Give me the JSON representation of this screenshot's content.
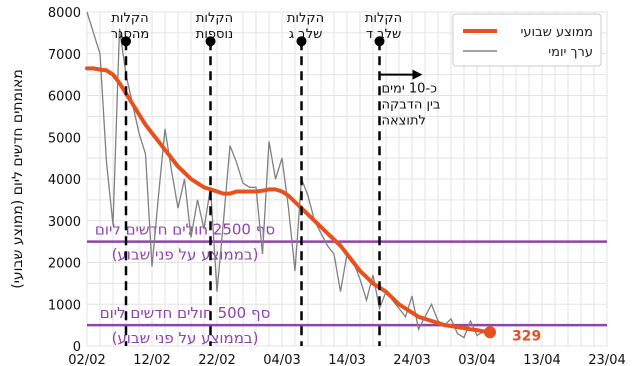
{
  "chart_data": {
    "type": "line",
    "ylabel": "מאומתים חדשים ליום (ממוצע שבועי)",
    "ylim": [
      0,
      8000
    ],
    "yticks": [
      "0",
      "1000",
      "2000",
      "3000",
      "4000",
      "5000",
      "6000",
      "7000",
      "8000"
    ],
    "xlim": [
      0,
      70
    ],
    "xticks": [
      {
        "day": 0,
        "label": "02/02"
      },
      {
        "day": 10,
        "label": "12/02"
      },
      {
        "day": 20,
        "label": "22/02"
      },
      {
        "day": 30,
        "label": "04/03"
      },
      {
        "day": 40,
        "label": "14/03"
      },
      {
        "day": 50,
        "label": "24/03"
      },
      {
        "day": 60,
        "label": "03/04"
      },
      {
        "day": 70,
        "label": "13/04"
      },
      {
        "day": 80,
        "label": "23/04"
      }
    ],
    "grid": true,
    "legend": {
      "placement": "top-right",
      "entries": [
        {
          "name": "ממוצע שבועי",
          "color": "#e8501c"
        },
        {
          "name": "ערך יומי",
          "color": "#808080"
        }
      ]
    },
    "series": [
      {
        "name": "ממוצע שבועי",
        "color": "#e8501c",
        "x": [
          0,
          1,
          2,
          3,
          4,
          5,
          6,
          7,
          8,
          9,
          10,
          11,
          12,
          13,
          14,
          15,
          16,
          17,
          18,
          19,
          20,
          21,
          22,
          23,
          24,
          25,
          26,
          27,
          28,
          29,
          30,
          31,
          32,
          33,
          34,
          35,
          36,
          37,
          38,
          39,
          40,
          41,
          42,
          43,
          44,
          45,
          46,
          47,
          48,
          49,
          50,
          51,
          52,
          53,
          54,
          55,
          56,
          57,
          58,
          59,
          60,
          61,
          62
        ],
        "y": [
          6650,
          6650,
          6620,
          6600,
          6500,
          6300,
          6050,
          5800,
          5550,
          5300,
          5100,
          4900,
          4700,
          4500,
          4300,
          4150,
          4000,
          3900,
          3800,
          3750,
          3700,
          3650,
          3650,
          3700,
          3700,
          3700,
          3700,
          3720,
          3750,
          3750,
          3700,
          3600,
          3450,
          3300,
          3150,
          3000,
          2850,
          2700,
          2550,
          2400,
          2200,
          2000,
          1800,
          1650,
          1500,
          1400,
          1300,
          1150,
          1000,
          900,
          800,
          700,
          650,
          600,
          550,
          500,
          480,
          450,
          430,
          400,
          380,
          350,
          329
        ]
      },
      {
        "name": "ערך יומי",
        "color": "#808080",
        "x": [
          0,
          1,
          2,
          3,
          4,
          5,
          6,
          7,
          8,
          9,
          10,
          11,
          12,
          13,
          14,
          15,
          16,
          17,
          18,
          19,
          20,
          21,
          22,
          23,
          24,
          25,
          26,
          27,
          28,
          29,
          30,
          31,
          32,
          33,
          34,
          35,
          36,
          37,
          38,
          39,
          40,
          41,
          42,
          43,
          44,
          45,
          46,
          47,
          48,
          49,
          50,
          51,
          52,
          53,
          54,
          55,
          56,
          57,
          58,
          59,
          60,
          61,
          62
        ],
        "y": [
          8000,
          7500,
          7000,
          4400,
          2900,
          7600,
          6500,
          5800,
          5100,
          4600,
          1900,
          3600,
          5200,
          4200,
          3300,
          4000,
          2600,
          3500,
          2800,
          3800,
          1300,
          3000,
          4800,
          4400,
          3900,
          3800,
          3800,
          2200,
          4900,
          4000,
          4500,
          3300,
          1800,
          4000,
          3600,
          3000,
          2700,
          2400,
          2200,
          1300,
          2200,
          2000,
          1600,
          1100,
          1700,
          900,
          1300,
          1100,
          900,
          700,
          1200,
          400,
          700,
          1000,
          600,
          500,
          650,
          300,
          200,
          600,
          250,
          350,
          300
        ]
      }
    ],
    "vlines": [
      {
        "day": 6,
        "label": [
          "הקלות",
          "מהסגר"
        ]
      },
      {
        "day": 19,
        "label": [
          "הקלות",
          "נוספות"
        ]
      },
      {
        "day": 33,
        "label": [
          "הקלות",
          "שלב ג"
        ]
      },
      {
        "day": 45,
        "label": [
          "הקלות",
          "שלב ד"
        ]
      }
    ],
    "hlines": [
      {
        "y": 2500,
        "color": "#8e44ad",
        "label": [
          "סף 2500 חולים חדשים ליום",
          "(בממוצע על פני שבוע)"
        ]
      },
      {
        "y": 500,
        "color": "#8e44ad",
        "label": [
          "סף 500 חולים חדשים ליום",
          "(בממוצע על פני שבוע)"
        ]
      }
    ],
    "annotation": {
      "day": 45,
      "lines": [
        "כ-10 ימים",
        "בין הדבקה",
        "לתוצאה"
      ]
    },
    "end_label": {
      "day": 62,
      "value": 329,
      "text": "329"
    }
  }
}
